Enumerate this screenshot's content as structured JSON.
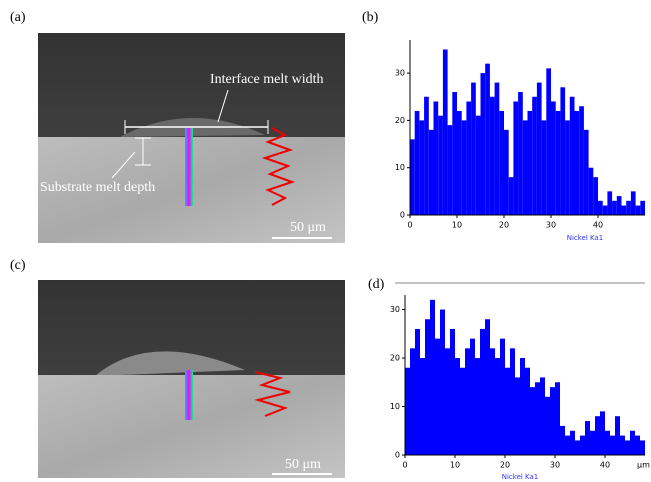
{
  "images": [
    {
      "label": "(a)",
      "annotations": [
        "Interface melt width",
        "Substrate melt depth"
      ],
      "scale_bar": "50 μm"
    },
    {
      "label": "(c)",
      "scale_bar": "50 μm"
    }
  ],
  "chart_data": [
    {
      "type": "bar",
      "label": "(b)",
      "x_label": "Nickel Ka1",
      "x": [
        0,
        1,
        2,
        3,
        4,
        5,
        6,
        7,
        8,
        9,
        10,
        11,
        12,
        13,
        14,
        15,
        16,
        17,
        18,
        19,
        20,
        21,
        22,
        23,
        24,
        25,
        26,
        27,
        28,
        29,
        30,
        31,
        32,
        33,
        34,
        35,
        36,
        37,
        38,
        39,
        40,
        41,
        42,
        43,
        44,
        45,
        46,
        47,
        48,
        49
      ],
      "values": [
        16,
        22,
        20,
        25,
        18,
        24,
        21,
        35,
        19,
        26,
        22,
        20,
        24,
        28,
        21,
        30,
        32,
        25,
        28,
        22,
        18,
        8,
        24,
        26,
        20,
        22,
        25,
        28,
        20,
        31,
        24,
        22,
        27,
        20,
        25,
        22,
        23,
        18,
        10,
        8,
        3,
        2,
        5,
        3,
        4,
        2,
        3,
        5,
        2,
        3
      ],
      "color": "#0000ff",
      "xlim": [
        0,
        50
      ],
      "ylim": [
        0,
        37
      ],
      "xticks": [
        0,
        10,
        20,
        30,
        40
      ],
      "yticks": [
        0,
        10,
        20,
        30
      ]
    },
    {
      "type": "bar",
      "label": "(d)",
      "x_label": "Nickel Ka1",
      "x_unit": "μm",
      "x": [
        0,
        1,
        2,
        3,
        4,
        5,
        6,
        7,
        8,
        9,
        10,
        11,
        12,
        13,
        14,
        15,
        16,
        17,
        18,
        19,
        20,
        21,
        22,
        23,
        24,
        25,
        26,
        27,
        28,
        29,
        30,
        31,
        32,
        33,
        34,
        35,
        36,
        37,
        38,
        39,
        40,
        41,
        42,
        43,
        44,
        45,
        46,
        47
      ],
      "values": [
        18,
        22,
        26,
        20,
        28,
        32,
        24,
        30,
        22,
        26,
        20,
        18,
        22,
        24,
        20,
        26,
        28,
        22,
        20,
        24,
        18,
        22,
        16,
        20,
        18,
        14,
        15,
        16,
        12,
        14,
        15,
        6,
        4,
        5,
        3,
        4,
        7,
        5,
        8,
        9,
        5,
        4,
        8,
        4,
        3,
        5,
        4,
        3
      ],
      "color": "#0000ff",
      "xlim": [
        0,
        48
      ],
      "ylim": [
        0,
        33
      ],
      "xticks": [
        0,
        10,
        20,
        30,
        40
      ],
      "yticks": [
        0,
        10,
        20,
        30
      ]
    }
  ]
}
